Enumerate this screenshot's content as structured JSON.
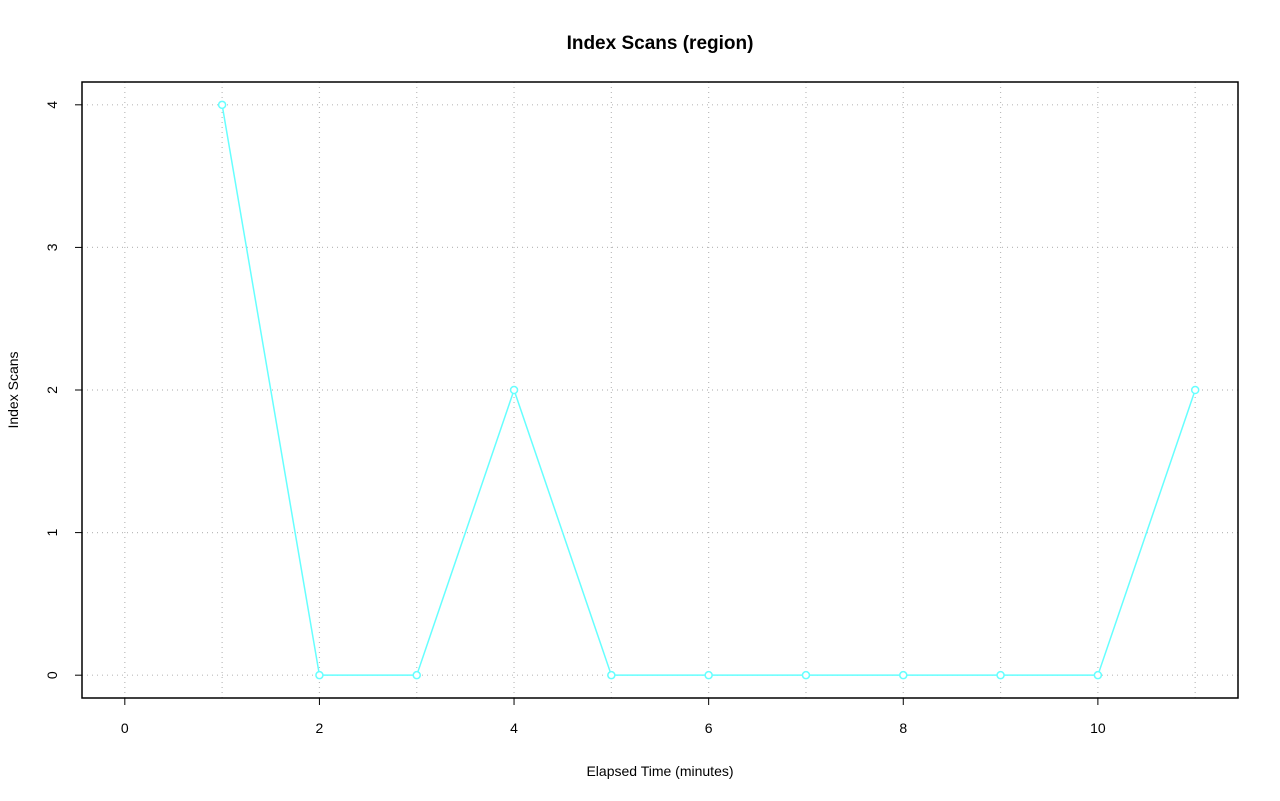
{
  "chart_data": {
    "type": "line",
    "title": "Index Scans (region)",
    "xlabel": "Elapsed Time (minutes)",
    "ylabel": "Index Scans",
    "x": [
      1,
      2,
      3,
      4,
      5,
      6,
      7,
      8,
      9,
      10,
      11
    ],
    "series": [
      {
        "name": "region",
        "color": "#66ffff",
        "values": [
          4,
          0,
          0,
          2,
          0,
          0,
          0,
          0,
          0,
          0,
          2
        ]
      }
    ],
    "xlim": [
      -0.44,
      11.44
    ],
    "ylim": [
      -0.16,
      4.16
    ],
    "xticks": [
      0,
      2,
      4,
      6,
      8,
      10
    ],
    "yticks": [
      0,
      1,
      2,
      3,
      4
    ],
    "xgrid": [
      0,
      1,
      2,
      3,
      4,
      5,
      6,
      7,
      8,
      9,
      10,
      11
    ],
    "grid": true
  }
}
